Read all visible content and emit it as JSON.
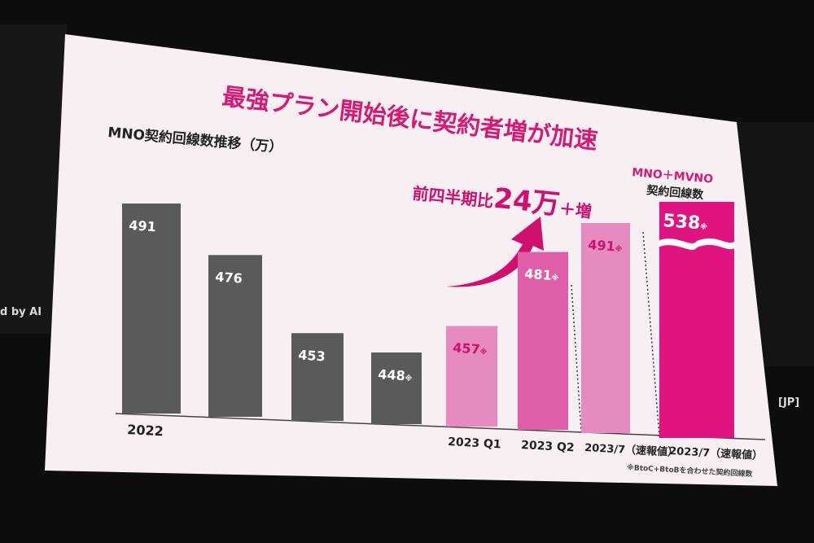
{
  "slide": {
    "title": "最強プラン開始後に契約者増が加速",
    "subtitle": "MNO契約回線数推移（万）",
    "growth_label_prefix": "前四半期比",
    "growth_label_value": "24万",
    "growth_label_suffix": "＋増",
    "mvno_header_line1": "MNO＋MVNO",
    "mvno_header_line2": "契約回線数",
    "footnote": "※BtoC+BtoBを合わせた契約回線数",
    "asterisk": "※",
    "colors": {
      "gray_bar": "#5a5a5c",
      "pink_light": "#e58bc0",
      "pink_mid": "#de5fa8",
      "magenta": "#e0147f",
      "title": "#d61a74",
      "slide_bg": "#f7eff2"
    }
  },
  "side": {
    "left_text": "d by AI",
    "right_text": "[JP]"
  },
  "chart_data": {
    "type": "bar",
    "title": "MNO契約回線数推移（万）",
    "unit": "万",
    "series": [
      {
        "values": [
          491,
          476,
          453,
          448,
          457,
          481,
          491,
          538
        ]
      }
    ],
    "bars": [
      {
        "value_label": "491",
        "note": false,
        "group": "2022"
      },
      {
        "value_label": "476",
        "note": false,
        "group": "2022"
      },
      {
        "value_label": "453",
        "note": false,
        "group": "2022"
      },
      {
        "value_label": "448",
        "note": true,
        "group": "2022"
      },
      {
        "value_label": "457",
        "note": true,
        "group": "2023 Q1"
      },
      {
        "value_label": "481",
        "note": true,
        "group": "2023 Q2"
      },
      {
        "value_label": "491",
        "note": true,
        "group": "2023/7（速報値）"
      },
      {
        "value_label": "538",
        "note": true,
        "group": "2023/7（速報値）"
      }
    ],
    "category_labels": [
      "2022",
      "2023 Q1",
      "2023 Q2",
      "2023/7（速報値）",
      "2023/7（速報値）"
    ]
  }
}
